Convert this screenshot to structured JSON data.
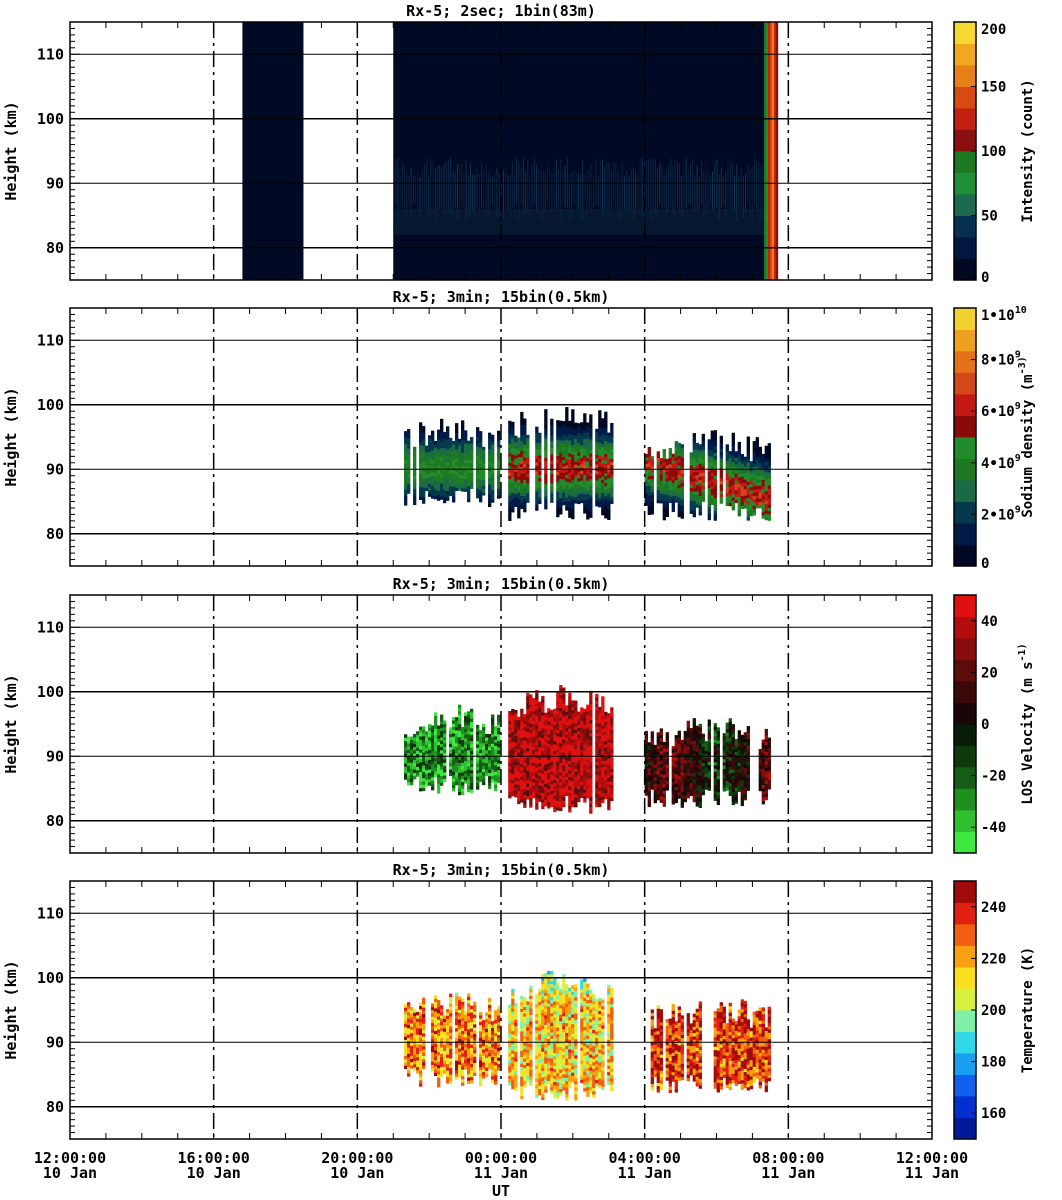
{
  "chart_data": [
    {
      "type": "heatmap",
      "title": "Rx-5;  2sec; 1bin(83m)",
      "ylabel": "Height (km)",
      "ylim": [
        75,
        115
      ],
      "yticks": [
        80,
        90,
        100,
        110
      ],
      "x_range_hours": [
        0,
        24
      ],
      "xtick_hours": [
        0,
        4,
        8,
        12,
        16,
        20,
        24
      ],
      "dashed_vlines_hours": [
        4,
        8,
        12,
        16,
        20
      ],
      "colorbar": {
        "label": "Intensity (count)",
        "range": [
          0,
          200
        ],
        "ticks": [
          "0",
          "50",
          "100",
          "150",
          "200"
        ],
        "colors": [
          "#000822",
          "#001840",
          "#06304f",
          "#1c6a50",
          "#1f8f3a",
          "#1d7a22",
          "#8a0f0f",
          "#c22010",
          "#d84a10",
          "#e8801a",
          "#f0a820",
          "#f6d830"
        ]
      },
      "data_segments": [
        {
          "start_hour": 4.8,
          "end_hour": 6.5,
          "values": "background (~5 counts)"
        },
        {
          "start_hour": 9.0,
          "end_hour": 19.7,
          "values": "background (~5–10), weak layer 85–95 km (~30)"
        },
        {
          "start_hour": 19.7,
          "end_hour": 19.8,
          "values": "dawn ramp 50–200"
        }
      ]
    },
    {
      "type": "heatmap",
      "title": "Rx-5; 3min; 15bin(0.5km)",
      "ylabel": "Height (km)",
      "ylim": [
        75,
        115
      ],
      "yticks": [
        80,
        90,
        100,
        110
      ],
      "colorbar": {
        "label": "Sodium density (m^-3)",
        "range": [
          0,
          10000000000.0
        ],
        "ticks": [
          "0",
          "2•10^9",
          "4•10^9",
          "6•10^9",
          "8•10^9",
          "1•10^10"
        ],
        "colors": [
          "#000822",
          "#001a48",
          "#053a4e",
          "#1a6a46",
          "#1d7a22",
          "#228b2a",
          "#8a0a0a",
          "#c21a12",
          "#d2481a",
          "#e47018",
          "#eea020",
          "#f4d22e"
        ]
      },
      "data_segments": [
        {
          "start_hour": 9.3,
          "end_hour": 11.9,
          "top_km": 98,
          "bottom_km": 84,
          "peak_km": 90,
          "peak_value": 4500000000.0
        },
        {
          "start_hour": 12.2,
          "end_hour": 15.1,
          "top_km": 100,
          "bottom_km": 82,
          "peak_km": 90,
          "peak_value": 6500000000.0
        },
        {
          "start_hour": 16.0,
          "end_hour": 19.5,
          "top_km": 96,
          "bottom_km": 82,
          "peak_km": 88,
          "peak_value": 6500000000.0
        }
      ]
    },
    {
      "type": "heatmap",
      "title": "Rx-5; 3min; 15bin(0.5km)",
      "ylabel": "Height (km)",
      "ylim": [
        75,
        115
      ],
      "yticks": [
        80,
        90,
        100,
        110
      ],
      "colorbar": {
        "label": "LOS Velocity (m s^-1)",
        "range": [
          -50,
          50
        ],
        "ticks": [
          "-40",
          "-20",
          "0",
          "20",
          "40"
        ],
        "colors": [
          "#3fe83f",
          "#2fbf2f",
          "#1f8f1f",
          "#165e16",
          "#0c3a0c",
          "#081a08",
          "#1a0606",
          "#3a0808",
          "#5e0b0b",
          "#870c0c",
          "#b20c0c",
          "#e01010"
        ]
      },
      "data_segments": [
        {
          "start_hour": 9.3,
          "end_hour": 11.9,
          "top_km": 98,
          "bottom_km": 84,
          "mean_velocity": -30
        },
        {
          "start_hour": 12.2,
          "end_hour": 15.1,
          "top_km": 101,
          "bottom_km": 81,
          "mean_velocity": 40
        },
        {
          "start_hour": 16.0,
          "end_hour": 19.5,
          "top_km": 96,
          "bottom_km": 82,
          "mean_velocity": 5
        }
      ]
    },
    {
      "type": "heatmap",
      "title": "Rx-5; 3min; 15bin(0.5km)",
      "ylabel": "Height (km)",
      "ylim": [
        75,
        115
      ],
      "yticks": [
        80,
        90,
        100,
        110
      ],
      "colorbar": {
        "label": "Temperature (K)",
        "range": [
          150,
          250
        ],
        "ticks": [
          "160",
          "180",
          "200",
          "220",
          "240"
        ],
        "colors": [
          "#001a9a",
          "#0030d0",
          "#1060f0",
          "#1aa0f0",
          "#30d8e8",
          "#80f0a8",
          "#d8f040",
          "#f8e020",
          "#f8a010",
          "#f06010",
          "#e02010",
          "#a00a0a"
        ]
      },
      "data_segments": [
        {
          "start_hour": 9.3,
          "end_hour": 11.9,
          "top_km": 98,
          "bottom_km": 83,
          "mean_temp": 225
        },
        {
          "start_hour": 12.2,
          "end_hour": 15.1,
          "top_km": 101,
          "bottom_km": 81,
          "mean_temp": 215
        },
        {
          "start_hour": 16.0,
          "end_hour": 19.5,
          "top_km": 97,
          "bottom_km": 82,
          "mean_temp": 235
        }
      ]
    }
  ],
  "x_axis": {
    "label": "UT",
    "tick_labels": [
      {
        "time": "12:00:00",
        "date": "10 Jan"
      },
      {
        "time": "16:00:00",
        "date": "10 Jan"
      },
      {
        "time": "20:00:00",
        "date": "10 Jan"
      },
      {
        "time": "00:00:00",
        "date": "11 Jan"
      },
      {
        "time": "04:00:00",
        "date": "11 Jan"
      },
      {
        "time": "08:00:00",
        "date": "11 Jan"
      },
      {
        "time": "12:00:00",
        "date": "11 Jan"
      }
    ]
  }
}
